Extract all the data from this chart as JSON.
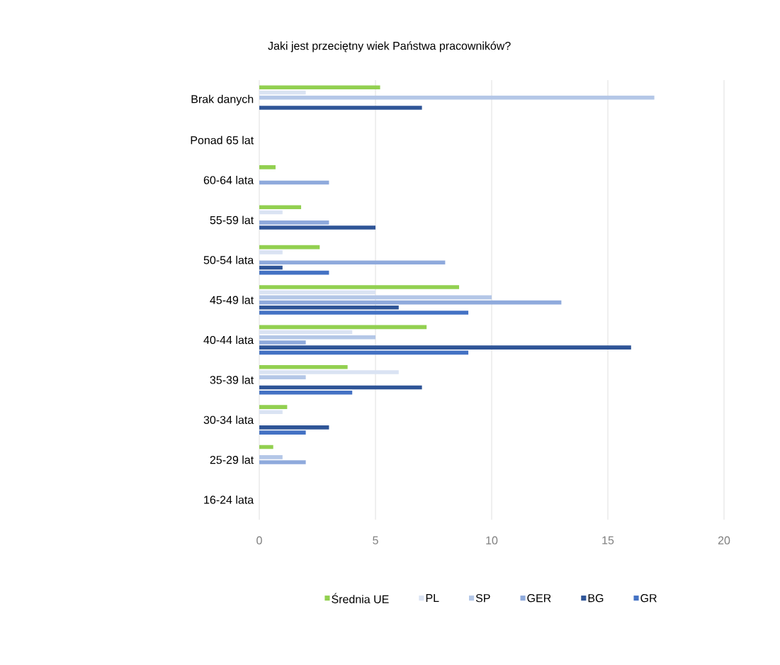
{
  "chart_data": {
    "type": "bar",
    "orientation": "horizontal",
    "title": "Jaki jest przeciętny wiek Państwa pracowników?",
    "categories": [
      "Brak danych",
      "Ponad 65 lat",
      "60-64 lata",
      "55-59 lat",
      "50-54 lata",
      "45-49 lat",
      "40-44 lata",
      "35-39 lat",
      "30-34 lata",
      "25-29 lat",
      "16-24 lata"
    ],
    "series": [
      {
        "name": "Średnia UE",
        "color": "#92d050",
        "values": [
          5.2,
          0,
          0.7,
          1.8,
          2.6,
          8.6,
          7.2,
          3.8,
          1.2,
          0.6,
          0
        ]
      },
      {
        "name": "PL",
        "color": "#dae3f3",
        "values": [
          2,
          0,
          0,
          1,
          1,
          5,
          4,
          6,
          1,
          0,
          0
        ]
      },
      {
        "name": "SP",
        "color": "#b4c7e7",
        "values": [
          17,
          0,
          0,
          0,
          0,
          10,
          5,
          2,
          0,
          1,
          0
        ]
      },
      {
        "name": "GER",
        "color": "#8faadc",
        "values": [
          0,
          0,
          3,
          3,
          8,
          13,
          2,
          0,
          0,
          2,
          0
        ]
      },
      {
        "name": "BG",
        "color": "#2f5597",
        "values": [
          7,
          0,
          0,
          5,
          1,
          6,
          16,
          7,
          3,
          0,
          0
        ]
      },
      {
        "name": "GR",
        "color": "#4472c4",
        "values": [
          0,
          0,
          0,
          0,
          3,
          9,
          9,
          4,
          2,
          0,
          0
        ]
      }
    ],
    "xlim": [
      0,
      20
    ],
    "xticks": [
      0,
      5,
      10,
      15,
      20
    ],
    "grid": "x",
    "legend": "bottom"
  }
}
